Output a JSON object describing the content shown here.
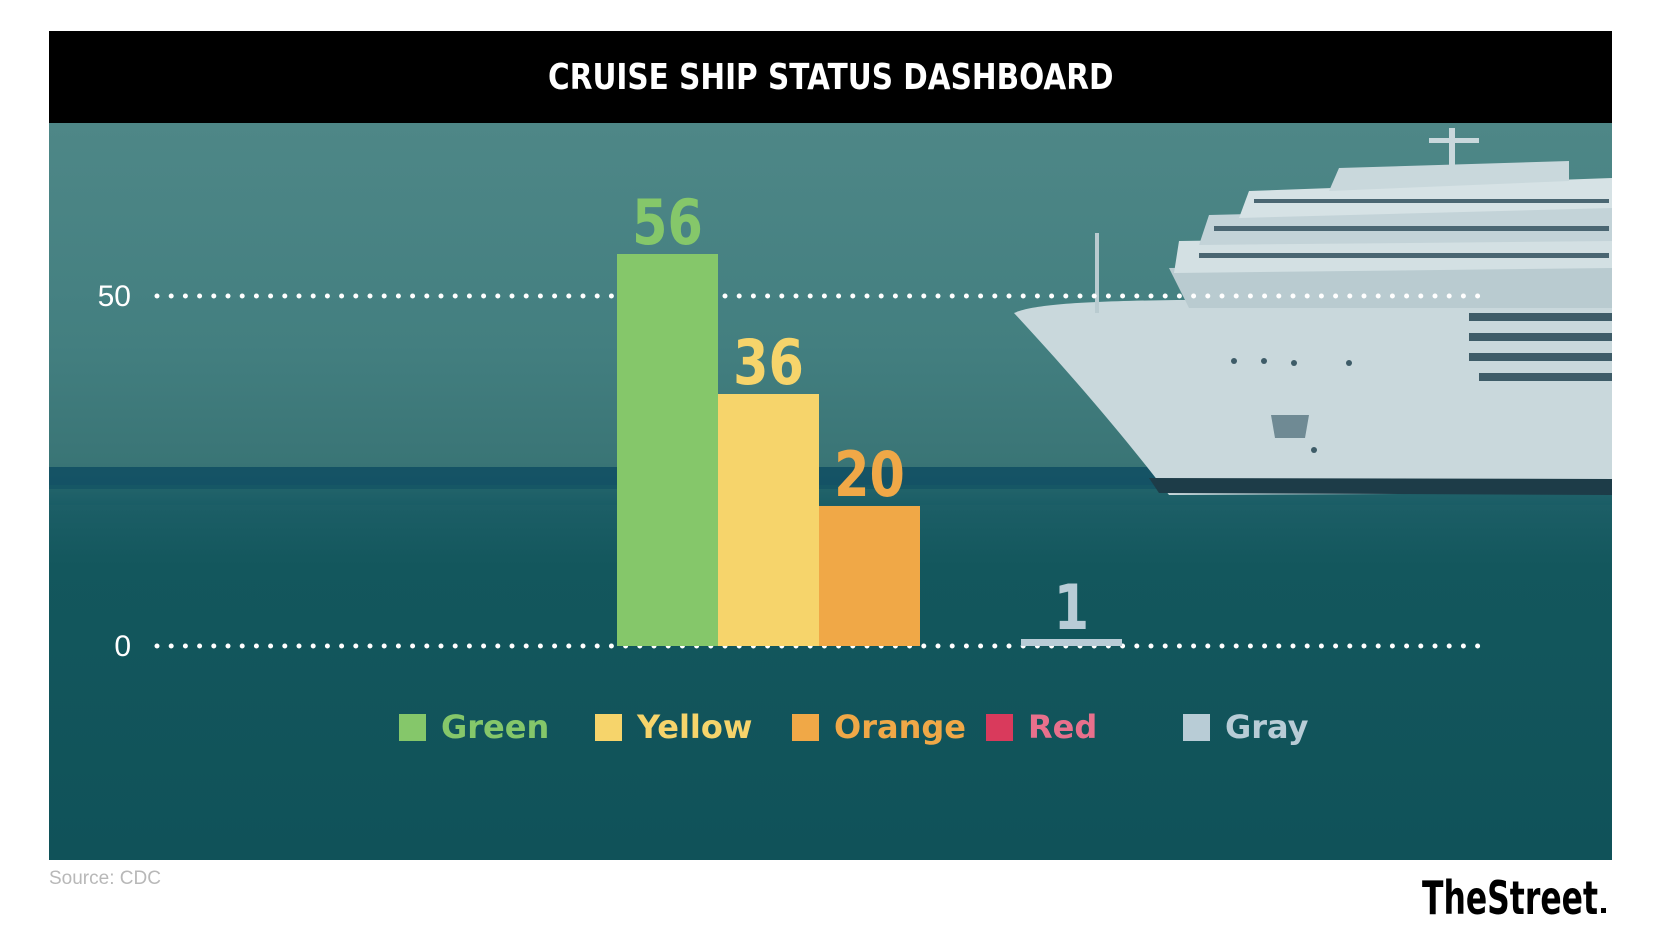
{
  "header": {
    "title": "CRUISE SHIP STATUS DASHBOARD"
  },
  "footer": {
    "source": "Source: CDC",
    "brand": "TheStreet"
  },
  "chart_data": {
    "type": "bar",
    "title": "CRUISE SHIP STATUS DASHBOARD",
    "xlabel": "",
    "ylabel": "",
    "categories": [
      "Green",
      "Yellow",
      "Orange",
      "Red",
      "Gray"
    ],
    "values": [
      56,
      36,
      20,
      0,
      1
    ],
    "value_labels": [
      "56",
      "36",
      "20",
      "",
      "1"
    ],
    "colors": [
      "#85c76a",
      "#f6d46b",
      "#f0a847",
      "#d93a5c",
      "#b8ccd6"
    ],
    "label_colors": [
      "#85c76a",
      "#f6d46b",
      "#f0a847",
      "#e8708c",
      "#b8ccd6"
    ],
    "y_ticks": [
      0,
      50
    ],
    "y_tick_labels": [
      "0",
      "50"
    ],
    "ylim": [
      0,
      56
    ],
    "grid": "dotted horizontal lines at ticks",
    "legend": "bottom",
    "source": "Source: CDC"
  }
}
